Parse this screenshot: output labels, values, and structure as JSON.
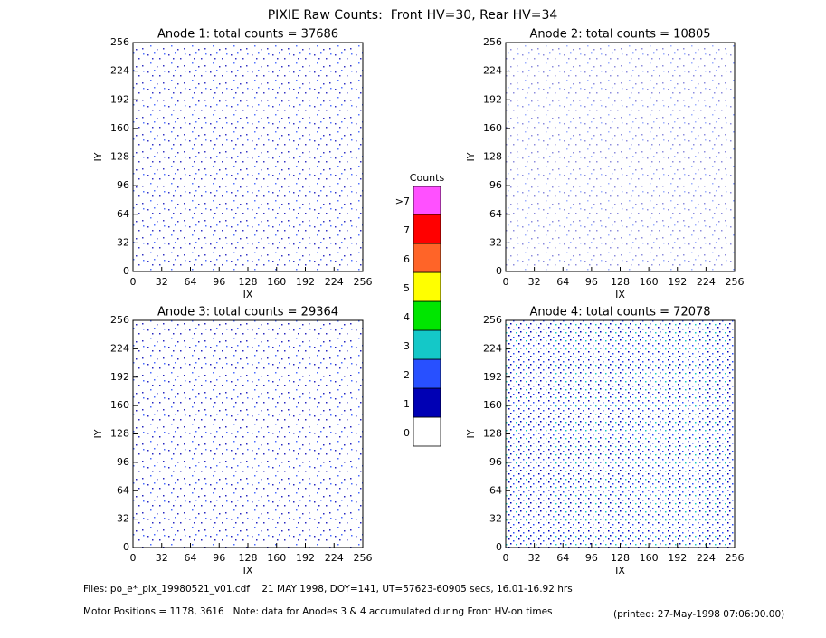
{
  "title": "PIXIE Raw Counts:  Front HV=30, Rear HV=34",
  "chart_data": [
    {
      "type": "heatmap",
      "title": "Anode 1: total counts = 37686",
      "xlabel": "IX",
      "ylabel": "IY",
      "xlim": [
        0,
        256
      ],
      "ylim": [
        0,
        256
      ],
      "xticks": [
        0,
        32,
        64,
        96,
        128,
        160,
        192,
        224,
        256
      ],
      "yticks": [
        0,
        32,
        64,
        96,
        128,
        160,
        192,
        224,
        256
      ]
    },
    {
      "type": "heatmap",
      "title": "Anode 2: total counts = 10805",
      "xlabel": "IX",
      "ylabel": "IY",
      "xlim": [
        0,
        256
      ],
      "ylim": [
        0,
        256
      ],
      "xticks": [
        0,
        32,
        64,
        96,
        128,
        160,
        192,
        224,
        256
      ],
      "yticks": [
        0,
        32,
        64,
        96,
        128,
        160,
        192,
        224,
        256
      ]
    },
    {
      "type": "heatmap",
      "title": "Anode 3: total counts = 29364",
      "xlabel": "IX",
      "ylabel": "IY",
      "xlim": [
        0,
        256
      ],
      "ylim": [
        0,
        256
      ],
      "xticks": [
        0,
        32,
        64,
        96,
        128,
        160,
        192,
        224,
        256
      ],
      "yticks": [
        0,
        32,
        64,
        96,
        128,
        160,
        192,
        224,
        256
      ]
    },
    {
      "type": "heatmap",
      "title": "Anode 4: total counts = 72078",
      "xlabel": "IX",
      "ylabel": "IY",
      "xlim": [
        0,
        256
      ],
      "ylim": [
        0,
        256
      ],
      "xticks": [
        0,
        32,
        64,
        96,
        128,
        160,
        192,
        224,
        256
      ],
      "yticks": [
        0,
        32,
        64,
        96,
        128,
        160,
        192,
        224,
        256
      ]
    },
    {
      "type": "colorbar",
      "title": "Counts",
      "categories": [
        "0",
        "1",
        "2",
        "3",
        "4",
        "5",
        "6",
        "7",
        ">7"
      ],
      "colors": [
        "#ffffff",
        "#0000b4",
        "#2850ff",
        "#14c8c8",
        "#00e600",
        "#ffff00",
        "#ff6428",
        "#ff0000",
        "#ff50ff"
      ]
    }
  ],
  "footer": {
    "files": "Files: po_e*_pix_19980521_v01.cdf    21 MAY 1998, DOY=141, UT=57623-60905 secs, 16.01-16.92 hrs",
    "motor": "Motor Positions = 1178, 3616   Note: data for Anodes 3 & 4 accumulated during Front HV-on times",
    "printed": "(printed: 27-May-1998 07:06:00.00)"
  }
}
